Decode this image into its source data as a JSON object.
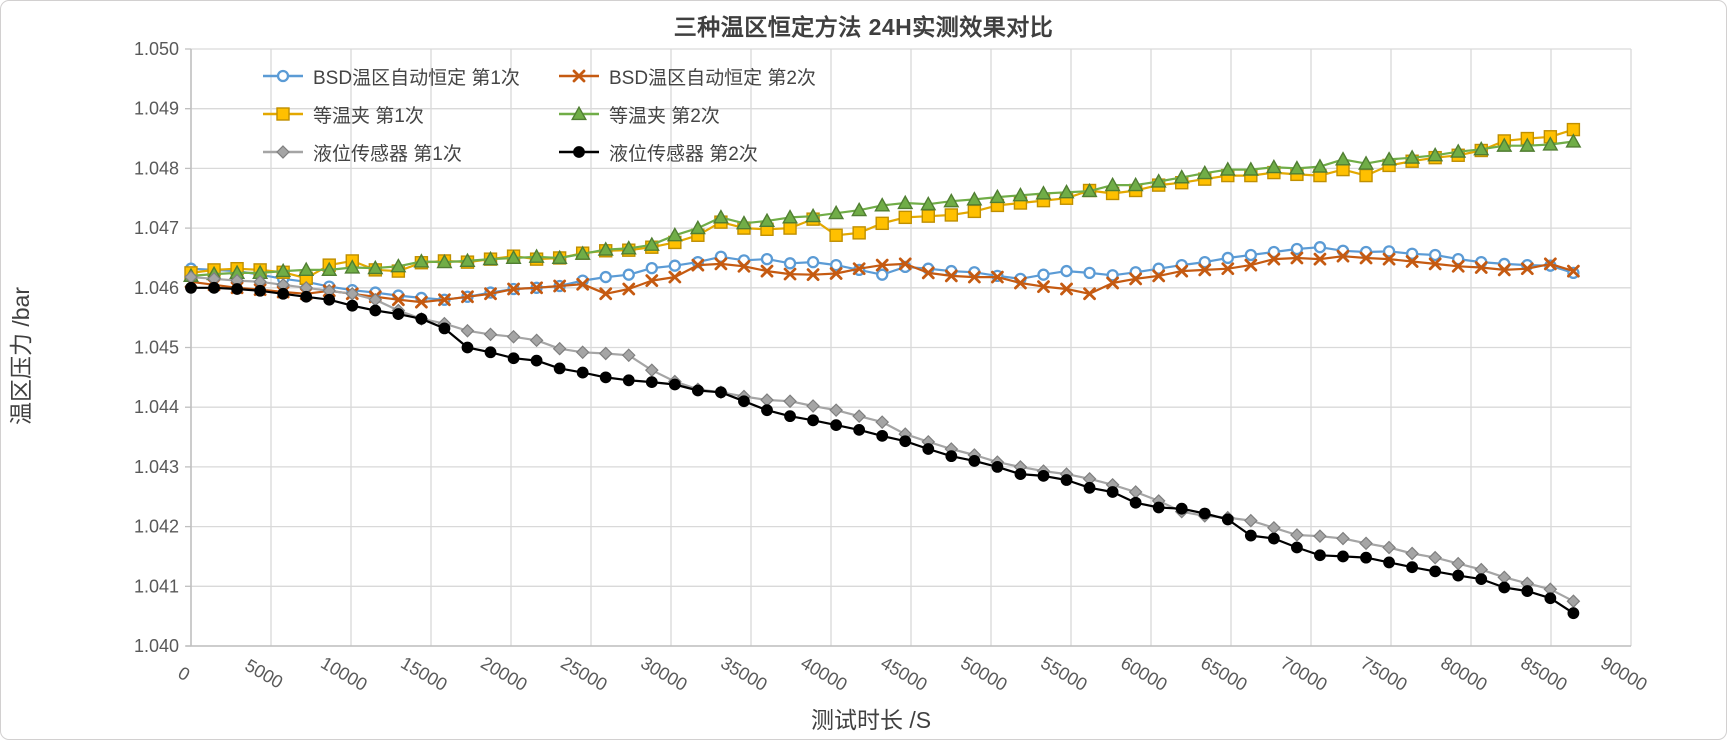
{
  "chart": {
    "title": "三种温区恒定方法 24H实测效果对比",
    "x_axis_title": "测试时长 /S",
    "y_axis_title": "温区压力 /bar"
  },
  "style": {
    "grid_color": "#d9d9d9",
    "axis_color": "#bfbfbf",
    "tick_label_color": "#595959",
    "title_color": "#3f3f3f",
    "legend_text_color": "#444444",
    "background": "#ffffff"
  },
  "chart_data": {
    "type": "line",
    "title": "三种温区恒定方法 24H实测效果对比",
    "xlabel": "测试时长 /S",
    "ylabel": "温区压力 /bar",
    "xlim": [
      0,
      90000
    ],
    "ylim": [
      1.04,
      1.05
    ],
    "grid": true,
    "legend_position": "top-left inside plot, two columns",
    "x_ticks": [
      0,
      5000,
      10000,
      15000,
      20000,
      25000,
      30000,
      35000,
      40000,
      45000,
      50000,
      55000,
      60000,
      65000,
      70000,
      75000,
      80000,
      85000,
      90000
    ],
    "x_tick_labels": [
      "0",
      "5000",
      "10000",
      "15000",
      "20000",
      "25000",
      "30000",
      "35000",
      "40000",
      "45000",
      "50000",
      "55000",
      "60000",
      "65000",
      "70000",
      "75000",
      "80000",
      "85000",
      "90000"
    ],
    "y_ticks": [
      1.04,
      1.041,
      1.042,
      1.043,
      1.044,
      1.045,
      1.046,
      1.047,
      1.048,
      1.049,
      1.05
    ],
    "y_tick_labels": [
      "1.040",
      "1.041",
      "1.042",
      "1.043",
      "1.044",
      "1.045",
      "1.046",
      "1.047",
      "1.048",
      "1.049",
      "1.050"
    ],
    "x": [
      0,
      1440,
      2880,
      4320,
      5760,
      7200,
      8640,
      10080,
      11520,
      12960,
      14400,
      15840,
      17280,
      18720,
      20160,
      21600,
      23040,
      24480,
      25920,
      27360,
      28800,
      30240,
      31680,
      33120,
      34560,
      36000,
      37440,
      38880,
      40320,
      41760,
      43200,
      44640,
      46080,
      47520,
      48960,
      50400,
      51840,
      53280,
      54720,
      56160,
      57600,
      59040,
      60480,
      61920,
      63360,
      64800,
      66240,
      67680,
      69120,
      70560,
      72000,
      73440,
      74880,
      76320,
      77760,
      79200,
      80640,
      82080,
      83520,
      84960,
      86400
    ],
    "series": [
      {
        "name": "BSD温区自动恒定 第1次",
        "color": "#5B9BD5",
        "marker": "circle-open",
        "marker_border": "#5B9BD5",
        "values": [
          1.04632,
          1.0463,
          1.04628,
          1.04622,
          1.04615,
          1.0461,
          1.04602,
          1.04596,
          1.04592,
          1.04587,
          1.04583,
          1.0458,
          1.04585,
          1.04592,
          1.04598,
          1.046,
          1.04603,
          1.04612,
          1.04618,
          1.04622,
          1.04633,
          1.04637,
          1.04643,
          1.04652,
          1.04646,
          1.04648,
          1.04641,
          1.04643,
          1.04638,
          1.0463,
          1.04622,
          1.04635,
          1.04632,
          1.04628,
          1.04626,
          1.0462,
          1.04615,
          1.04622,
          1.04628,
          1.04625,
          1.04621,
          1.04626,
          1.04632,
          1.04638,
          1.04643,
          1.0465,
          1.04655,
          1.0466,
          1.04665,
          1.04668,
          1.04662,
          1.0466,
          1.04661,
          1.04657,
          1.04655,
          1.04648,
          1.04643,
          1.0464,
          1.04638,
          1.04637,
          1.04625
        ]
      },
      {
        "name": "BSD温区自动恒定 第2次",
        "color": "#C55A11",
        "marker": "x",
        "marker_border": "#C55A11",
        "values": [
          1.0461,
          1.04605,
          1.046,
          1.04597,
          1.04593,
          1.0459,
          1.04595,
          1.0459,
          1.04585,
          1.0458,
          1.04576,
          1.0458,
          1.04585,
          1.0459,
          1.04598,
          1.046,
          1.04603,
          1.04606,
          1.0459,
          1.04598,
          1.04612,
          1.04618,
          1.04638,
          1.0464,
          1.04636,
          1.04628,
          1.04623,
          1.04622,
          1.04624,
          1.04632,
          1.04638,
          1.0464,
          1.04625,
          1.0462,
          1.04618,
          1.04618,
          1.04608,
          1.04602,
          1.04598,
          1.0459,
          1.04608,
          1.04615,
          1.0462,
          1.04628,
          1.0463,
          1.04632,
          1.04638,
          1.04648,
          1.0465,
          1.04648,
          1.04653,
          1.0465,
          1.04648,
          1.04644,
          1.0464,
          1.04636,
          1.04634,
          1.0463,
          1.04632,
          1.0464,
          1.04628
        ]
      },
      {
        "name": "等温夹 第1次",
        "color": "#E3A800",
        "marker": "square",
        "marker_fill": "#FFC000",
        "marker_border": "#BF8F00",
        "values": [
          1.04625,
          1.0463,
          1.04632,
          1.0463,
          1.04626,
          1.04616,
          1.04638,
          1.04645,
          1.0463,
          1.04628,
          1.04642,
          1.04645,
          1.04643,
          1.04648,
          1.04653,
          1.04648,
          1.0465,
          1.04658,
          1.04662,
          1.04663,
          1.04668,
          1.04676,
          1.04688,
          1.0471,
          1.047,
          1.04698,
          1.047,
          1.04715,
          1.04688,
          1.04692,
          1.04708,
          1.04718,
          1.0472,
          1.04722,
          1.04728,
          1.04738,
          1.04742,
          1.04746,
          1.0475,
          1.04763,
          1.04758,
          1.04763,
          1.04772,
          1.04776,
          1.04782,
          1.04788,
          1.04788,
          1.04793,
          1.0479,
          1.04788,
          1.04798,
          1.04788,
          1.04805,
          1.04812,
          1.04818,
          1.04822,
          1.0483,
          1.04846,
          1.0485,
          1.04853,
          1.04865
        ]
      },
      {
        "name": "等温夹 第2次",
        "color": "#70AD47",
        "marker": "triangle",
        "marker_fill": "#70AD47",
        "marker_border": "#507E32",
        "values": [
          1.0462,
          1.04623,
          1.04625,
          1.04625,
          1.04628,
          1.0463,
          1.0463,
          1.04634,
          1.04633,
          1.04636,
          1.04644,
          1.04643,
          1.04645,
          1.04648,
          1.0465,
          1.04652,
          1.0465,
          1.04657,
          1.04664,
          1.04666,
          1.04672,
          1.04688,
          1.047,
          1.04718,
          1.04708,
          1.04712,
          1.04718,
          1.0472,
          1.04725,
          1.0473,
          1.04738,
          1.04742,
          1.0474,
          1.04745,
          1.04748,
          1.04752,
          1.04755,
          1.04758,
          1.0476,
          1.04762,
          1.04772,
          1.04772,
          1.04778,
          1.04785,
          1.04792,
          1.04798,
          1.04798,
          1.04802,
          1.048,
          1.04803,
          1.04815,
          1.04808,
          1.04815,
          1.04818,
          1.04822,
          1.04828,
          1.04832,
          1.04838,
          1.04838,
          1.0484,
          1.04845
        ]
      },
      {
        "name": "液位传感器 第1次",
        "color": "#A5A5A5",
        "marker": "diamond",
        "marker_fill": "#A5A5A5",
        "marker_border": "#7F7F7F",
        "values": [
          1.04618,
          1.04615,
          1.04612,
          1.0461,
          1.04605,
          1.046,
          1.04595,
          1.0459,
          1.0458,
          1.04562,
          1.04548,
          1.0454,
          1.04528,
          1.04522,
          1.04518,
          1.04512,
          1.04498,
          1.04492,
          1.0449,
          1.04487,
          1.04462,
          1.04443,
          1.0443,
          1.04425,
          1.04418,
          1.04412,
          1.0441,
          1.04402,
          1.04395,
          1.04385,
          1.04375,
          1.04355,
          1.04342,
          1.0433,
          1.0432,
          1.04308,
          1.043,
          1.04293,
          1.04288,
          1.0428,
          1.0427,
          1.04258,
          1.04243,
          1.04225,
          1.04218,
          1.04215,
          1.0421,
          1.04198,
          1.04186,
          1.04184,
          1.0418,
          1.04172,
          1.04165,
          1.04155,
          1.04148,
          1.04138,
          1.04128,
          1.04115,
          1.04105,
          1.04095,
          1.04075
        ]
      },
      {
        "name": "液位传感器 第2次",
        "color": "#000000",
        "marker": "circle",
        "marker_fill": "#000000",
        "marker_border": "#000000",
        "values": [
          1.046,
          1.046,
          1.04598,
          1.04595,
          1.0459,
          1.04585,
          1.0458,
          1.0457,
          1.04562,
          1.04556,
          1.04548,
          1.04532,
          1.045,
          1.04492,
          1.04482,
          1.04478,
          1.04465,
          1.04458,
          1.0445,
          1.04445,
          1.04442,
          1.04438,
          1.04428,
          1.04425,
          1.0441,
          1.04395,
          1.04385,
          1.04378,
          1.0437,
          1.04362,
          1.04352,
          1.04343,
          1.0433,
          1.04318,
          1.0431,
          1.043,
          1.04288,
          1.04285,
          1.04278,
          1.04265,
          1.04258,
          1.0424,
          1.04232,
          1.0423,
          1.04222,
          1.04212,
          1.04185,
          1.0418,
          1.04165,
          1.04152,
          1.0415,
          1.04148,
          1.0414,
          1.04132,
          1.04125,
          1.04118,
          1.04112,
          1.04098,
          1.04092,
          1.0408,
          1.04055
        ]
      }
    ],
    "legend_columns": [
      [
        0,
        2,
        4
      ],
      [
        1,
        3,
        5
      ]
    ]
  }
}
